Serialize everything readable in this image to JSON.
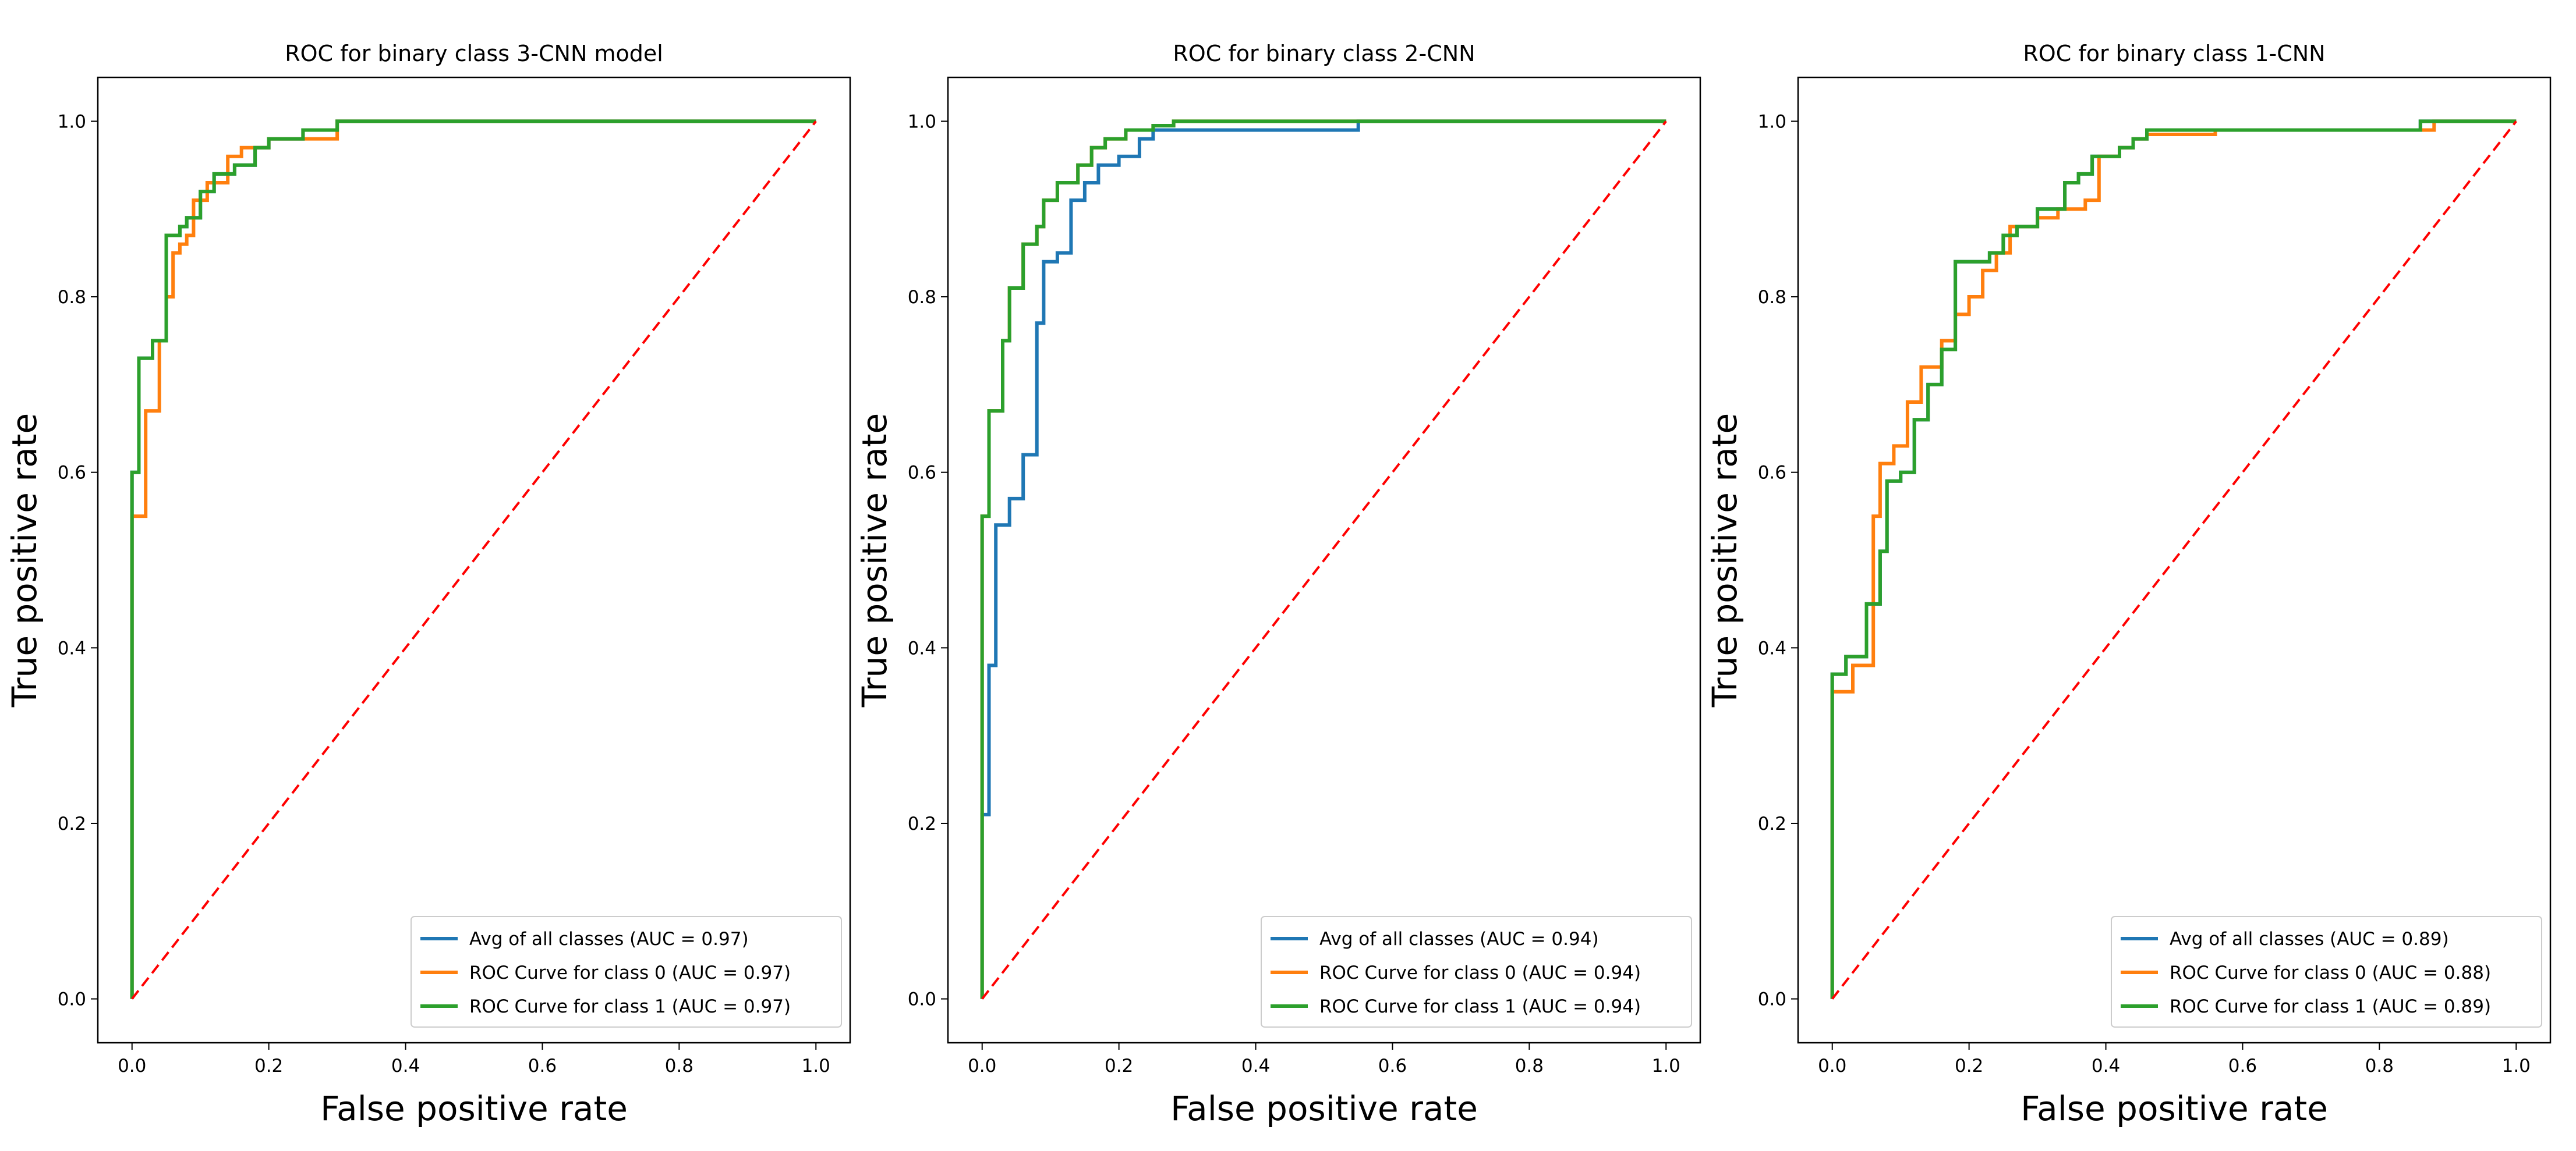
{
  "chart_data": [
    {
      "type": "line",
      "title": "ROC for binary class 3-CNN model",
      "xlabel": "False positive rate",
      "ylabel": "True positive rate",
      "xlim": [
        -0.05,
        1.05
      ],
      "ylim": [
        -0.05,
        1.05
      ],
      "xticks": [
        "0.0",
        "0.2",
        "0.4",
        "0.6",
        "0.8",
        "1.0"
      ],
      "yticks": [
        "0.0",
        "0.2",
        "0.4",
        "0.6",
        "0.8",
        "1.0"
      ],
      "legend_position": "bottom-right",
      "series": [
        {
          "name": "Avg of all classes  (AUC = 0.97)",
          "color": "#1f77b4",
          "x": [
            0.0,
            0.0,
            0.01,
            0.01,
            0.03,
            0.03,
            0.05,
            0.05,
            0.07,
            0.07,
            0.08,
            0.08,
            0.1,
            0.1,
            0.12,
            0.12,
            0.15,
            0.15,
            0.18,
            0.18,
            0.2,
            0.2,
            0.25,
            0.25,
            0.3,
            0.3,
            1.0
          ],
          "y": [
            0.0,
            0.6,
            0.6,
            0.73,
            0.73,
            0.75,
            0.75,
            0.87,
            0.87,
            0.88,
            0.88,
            0.89,
            0.89,
            0.92,
            0.92,
            0.94,
            0.94,
            0.95,
            0.95,
            0.97,
            0.97,
            0.98,
            0.98,
            0.99,
            0.99,
            1.0,
            1.0
          ]
        },
        {
          "name": "ROC Curve for class 0 (AUC = 0.97)",
          "color": "#ff7f0e",
          "x": [
            0.0,
            0.0,
            0.02,
            0.02,
            0.04,
            0.04,
            0.05,
            0.05,
            0.06,
            0.06,
            0.07,
            0.07,
            0.08,
            0.08,
            0.09,
            0.09,
            0.11,
            0.11,
            0.14,
            0.14,
            0.16,
            0.16,
            0.2,
            0.2,
            0.3,
            0.3,
            1.0
          ],
          "y": [
            0.0,
            0.55,
            0.55,
            0.67,
            0.67,
            0.75,
            0.75,
            0.8,
            0.8,
            0.85,
            0.85,
            0.86,
            0.86,
            0.87,
            0.87,
            0.91,
            0.91,
            0.93,
            0.93,
            0.96,
            0.96,
            0.97,
            0.97,
            0.98,
            0.98,
            1.0,
            1.0
          ]
        },
        {
          "name": "ROC Curve for class 1 (AUC = 0.97)",
          "color": "#2ca02c",
          "x": [
            0.0,
            0.0,
            0.01,
            0.01,
            0.03,
            0.03,
            0.05,
            0.05,
            0.07,
            0.07,
            0.08,
            0.08,
            0.1,
            0.1,
            0.12,
            0.12,
            0.15,
            0.15,
            0.18,
            0.18,
            0.2,
            0.2,
            0.25,
            0.25,
            0.3,
            0.3,
            1.0
          ],
          "y": [
            0.0,
            0.6,
            0.6,
            0.73,
            0.73,
            0.75,
            0.75,
            0.87,
            0.87,
            0.88,
            0.88,
            0.89,
            0.89,
            0.92,
            0.92,
            0.94,
            0.94,
            0.95,
            0.95,
            0.97,
            0.97,
            0.98,
            0.98,
            0.99,
            0.99,
            1.0,
            1.0
          ]
        },
        {
          "name": "chance",
          "color": "#ff0000",
          "dashed": true,
          "x": [
            0.0,
            1.0
          ],
          "y": [
            0.0,
            1.0
          ]
        }
      ]
    },
    {
      "type": "line",
      "title": "ROC for binary class 2-CNN",
      "xlabel": "False positive rate",
      "ylabel": "True positive rate",
      "xlim": [
        -0.05,
        1.05
      ],
      "ylim": [
        -0.05,
        1.05
      ],
      "xticks": [
        "0.0",
        "0.2",
        "0.4",
        "0.6",
        "0.8",
        "1.0"
      ],
      "yticks": [
        "0.0",
        "0.2",
        "0.4",
        "0.6",
        "0.8",
        "1.0"
      ],
      "legend_position": "bottom-right",
      "series": [
        {
          "name": "Avg of all classes  (AUC = 0.94)",
          "color": "#1f77b4",
          "x": [
            0.0,
            0.0,
            0.01,
            0.01,
            0.02,
            0.02,
            0.04,
            0.04,
            0.06,
            0.06,
            0.08,
            0.08,
            0.09,
            0.09,
            0.11,
            0.11,
            0.13,
            0.13,
            0.15,
            0.15,
            0.17,
            0.17,
            0.2,
            0.2,
            0.23,
            0.23,
            0.25,
            0.25,
            0.55,
            0.55,
            1.0
          ],
          "y": [
            0.0,
            0.21,
            0.21,
            0.38,
            0.38,
            0.54,
            0.54,
            0.57,
            0.57,
            0.62,
            0.62,
            0.77,
            0.77,
            0.84,
            0.84,
            0.85,
            0.85,
            0.91,
            0.91,
            0.93,
            0.93,
            0.95,
            0.95,
            0.96,
            0.96,
            0.98,
            0.98,
            0.99,
            0.99,
            1.0,
            1.0
          ]
        },
        {
          "name": "ROC Curve for class 0 (AUC = 0.94)",
          "color": "#ff7f0e",
          "x": [
            0.0,
            0.0,
            0.01,
            0.01,
            0.03,
            0.03,
            0.04,
            0.04,
            0.06,
            0.06,
            0.08,
            0.08,
            0.09,
            0.09,
            0.11,
            0.11,
            0.14,
            0.14,
            0.16,
            0.16,
            0.18,
            0.18,
            0.21,
            0.21,
            0.25,
            0.25,
            0.28,
            0.28,
            1.0
          ],
          "y": [
            0.0,
            0.55,
            0.55,
            0.67,
            0.67,
            0.75,
            0.75,
            0.81,
            0.81,
            0.86,
            0.86,
            0.88,
            0.88,
            0.91,
            0.91,
            0.93,
            0.93,
            0.95,
            0.95,
            0.97,
            0.97,
            0.98,
            0.98,
            0.99,
            0.99,
            0.995,
            0.995,
            1.0,
            1.0
          ]
        },
        {
          "name": "ROC Curve for class 1 (AUC = 0.94)",
          "color": "#2ca02c",
          "x": [
            0.0,
            0.0,
            0.01,
            0.01,
            0.03,
            0.03,
            0.04,
            0.04,
            0.06,
            0.06,
            0.08,
            0.08,
            0.09,
            0.09,
            0.11,
            0.11,
            0.14,
            0.14,
            0.16,
            0.16,
            0.18,
            0.18,
            0.21,
            0.21,
            0.25,
            0.25,
            0.28,
            0.28,
            1.0
          ],
          "y": [
            0.0,
            0.55,
            0.55,
            0.67,
            0.67,
            0.75,
            0.75,
            0.81,
            0.81,
            0.86,
            0.86,
            0.88,
            0.88,
            0.91,
            0.91,
            0.93,
            0.93,
            0.95,
            0.95,
            0.97,
            0.97,
            0.98,
            0.98,
            0.99,
            0.99,
            0.995,
            0.995,
            1.0,
            1.0
          ]
        },
        {
          "name": "chance",
          "color": "#ff0000",
          "dashed": true,
          "x": [
            0.0,
            1.0
          ],
          "y": [
            0.0,
            1.0
          ]
        }
      ]
    },
    {
      "type": "line",
      "title": "ROC for binary class 1-CNN",
      "xlabel": "False positive rate",
      "ylabel": "True positive rate",
      "xlim": [
        -0.05,
        1.05
      ],
      "ylim": [
        -0.05,
        1.05
      ],
      "xticks": [
        "0.0",
        "0.2",
        "0.4",
        "0.6",
        "0.8",
        "1.0"
      ],
      "yticks": [
        "0.0",
        "0.2",
        "0.4",
        "0.6",
        "0.8",
        "1.0"
      ],
      "legend_position": "bottom-right",
      "series": [
        {
          "name": "Avg of all classes  (AUC = 0.89)",
          "color": "#1f77b4",
          "x": [
            0.0,
            0.0,
            0.02,
            0.02,
            0.05,
            0.05,
            0.07,
            0.07,
            0.08,
            0.08,
            0.1,
            0.1,
            0.12,
            0.12,
            0.14,
            0.14,
            0.16,
            0.16,
            0.18,
            0.18,
            0.23,
            0.23,
            0.25,
            0.25,
            0.27,
            0.27,
            0.3,
            0.3,
            0.34,
            0.34,
            0.36,
            0.36,
            0.38,
            0.38,
            0.42,
            0.42,
            0.44,
            0.44,
            0.46,
            0.46,
            0.86,
            0.86,
            1.0
          ],
          "y": [
            0.0,
            0.37,
            0.37,
            0.39,
            0.39,
            0.45,
            0.45,
            0.51,
            0.51,
            0.59,
            0.59,
            0.6,
            0.6,
            0.66,
            0.66,
            0.7,
            0.7,
            0.74,
            0.74,
            0.84,
            0.84,
            0.85,
            0.85,
            0.87,
            0.87,
            0.88,
            0.88,
            0.9,
            0.9,
            0.93,
            0.93,
            0.94,
            0.94,
            0.96,
            0.96,
            0.97,
            0.97,
            0.98,
            0.98,
            0.99,
            0.99,
            1.0,
            1.0
          ]
        },
        {
          "name": "ROC Curve for class 0 (AUC = 0.88)",
          "color": "#ff7f0e",
          "x": [
            0.0,
            0.0,
            0.03,
            0.03,
            0.06,
            0.06,
            0.07,
            0.07,
            0.09,
            0.09,
            0.11,
            0.11,
            0.13,
            0.13,
            0.16,
            0.16,
            0.18,
            0.18,
            0.2,
            0.2,
            0.22,
            0.22,
            0.24,
            0.24,
            0.26,
            0.26,
            0.3,
            0.3,
            0.33,
            0.33,
            0.37,
            0.37,
            0.39,
            0.39,
            0.42,
            0.42,
            0.44,
            0.44,
            0.46,
            0.46,
            0.56,
            0.56,
            0.88,
            0.88,
            1.0
          ],
          "y": [
            0.0,
            0.35,
            0.35,
            0.38,
            0.38,
            0.55,
            0.55,
            0.61,
            0.61,
            0.63,
            0.63,
            0.68,
            0.68,
            0.72,
            0.72,
            0.75,
            0.75,
            0.78,
            0.78,
            0.8,
            0.8,
            0.83,
            0.83,
            0.85,
            0.85,
            0.88,
            0.88,
            0.89,
            0.89,
            0.9,
            0.9,
            0.91,
            0.91,
            0.96,
            0.96,
            0.97,
            0.97,
            0.98,
            0.98,
            0.985,
            0.985,
            0.99,
            0.99,
            1.0,
            1.0
          ]
        },
        {
          "name": "ROC Curve for class 1 (AUC = 0.89)",
          "color": "#2ca02c",
          "x": [
            0.0,
            0.0,
            0.02,
            0.02,
            0.05,
            0.05,
            0.07,
            0.07,
            0.08,
            0.08,
            0.1,
            0.1,
            0.12,
            0.12,
            0.14,
            0.14,
            0.16,
            0.16,
            0.18,
            0.18,
            0.23,
            0.23,
            0.25,
            0.25,
            0.27,
            0.27,
            0.3,
            0.3,
            0.34,
            0.34,
            0.36,
            0.36,
            0.38,
            0.38,
            0.42,
            0.42,
            0.44,
            0.44,
            0.46,
            0.46,
            0.86,
            0.86,
            1.0
          ],
          "y": [
            0.0,
            0.37,
            0.37,
            0.39,
            0.39,
            0.45,
            0.45,
            0.51,
            0.51,
            0.59,
            0.59,
            0.6,
            0.6,
            0.66,
            0.66,
            0.7,
            0.7,
            0.74,
            0.74,
            0.84,
            0.84,
            0.85,
            0.85,
            0.87,
            0.87,
            0.88,
            0.88,
            0.9,
            0.9,
            0.93,
            0.93,
            0.94,
            0.94,
            0.96,
            0.96,
            0.97,
            0.97,
            0.98,
            0.98,
            0.99,
            0.99,
            1.0,
            1.0
          ]
        },
        {
          "name": "chance",
          "color": "#ff0000",
          "dashed": true,
          "x": [
            0.0,
            1.0
          ],
          "y": [
            0.0,
            1.0
          ]
        }
      ]
    }
  ]
}
